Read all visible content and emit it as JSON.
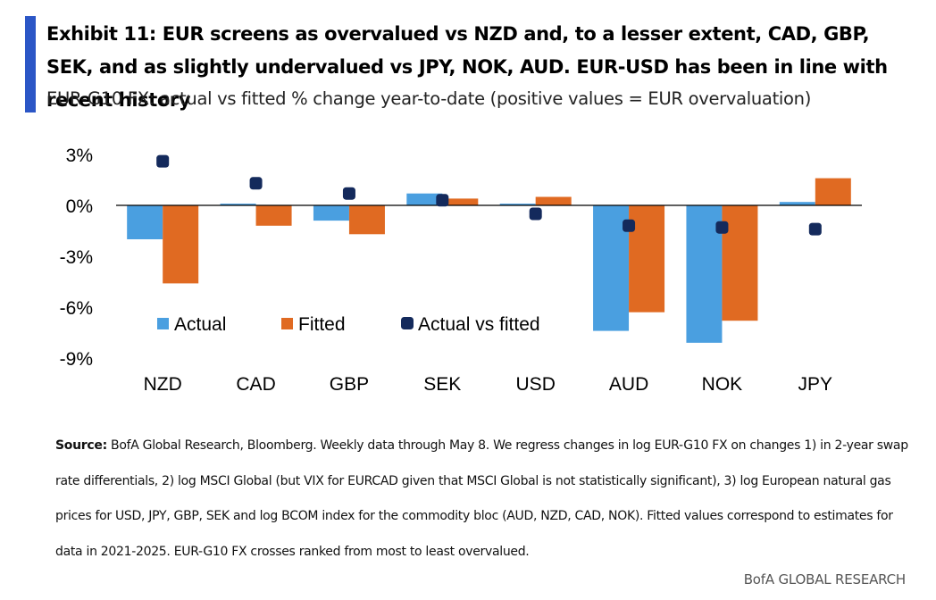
{
  "header": {
    "accent_color": "#2b56c6",
    "title": "Exhibit 11:  EUR screens as overvalued vs NZD and, to a lesser extent, CAD, GBP, SEK, and as slightly undervalued vs JPY, NOK, AUD. EUR-USD has been in line with recent history",
    "subtitle": "EUR-G10 FX: actual vs fitted % change year-to-date (positive values = EUR overvaluation)"
  },
  "chart_data": {
    "type": "bar",
    "categories": [
      "NZD",
      "CAD",
      "GBP",
      "SEK",
      "USD",
      "AUD",
      "NOK",
      "JPY"
    ],
    "series": [
      {
        "name": "Actual",
        "kind": "bar",
        "color": "#4a9fe0",
        "values": [
          -2.0,
          0.1,
          -0.9,
          0.7,
          0.1,
          -7.4,
          -8.1,
          0.2
        ]
      },
      {
        "name": "Fitted",
        "kind": "bar",
        "color": "#e06a22",
        "values": [
          -4.6,
          -1.2,
          -1.7,
          0.4,
          0.5,
          -6.3,
          -6.8,
          1.6
        ]
      },
      {
        "name": "Actual vs fitted",
        "kind": "marker",
        "color": "#142a5c",
        "values": [
          2.6,
          1.3,
          0.7,
          0.3,
          -0.5,
          -1.2,
          -1.3,
          -1.4
        ]
      }
    ],
    "yticks": [
      3,
      0,
      -3,
      -6,
      -9
    ],
    "ytick_labels": [
      "3%",
      "0%",
      "-3%",
      "-6%",
      "-9%"
    ],
    "ylim": [
      -9,
      3
    ],
    "legend_position": "inside-lower-left",
    "grid": false
  },
  "footnote": {
    "source_label": "Source:",
    "text": " BofA Global Research, Bloomberg. Weekly data through May 8. We regress changes in log EUR-G10 FX on changes 1) in 2-year swap rate differentials, 2) log MSCI Global (but VIX for EURCAD given that MSCI Global is not statistically significant), 3) log European natural gas prices for USD, JPY, GBP, SEK and log BCOM index for the commodity bloc (AUD, NZD, CAD, NOK). Fitted values correspond to estimates for data in 2021-2025. EUR-G10 FX crosses ranked from most to least overvalued."
  },
  "credit": "BofA GLOBAL RESEARCH"
}
